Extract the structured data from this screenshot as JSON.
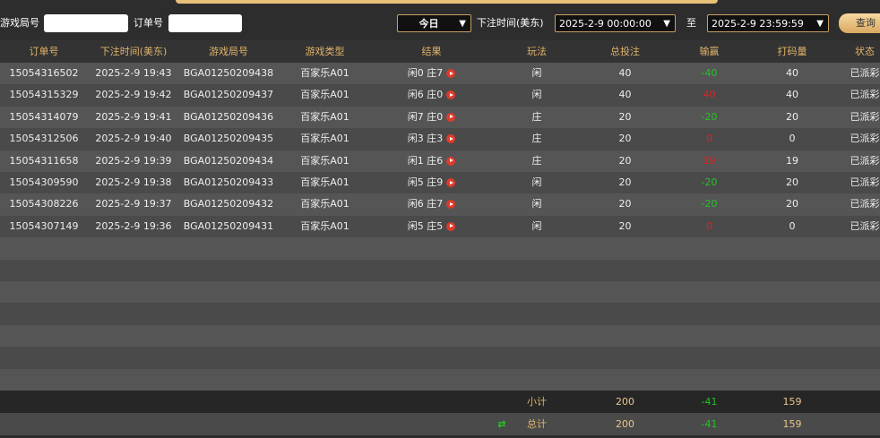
{
  "filters": {
    "round_label": "游戏局号",
    "order_label": "订单号",
    "period": "今日",
    "time_label": "下注时间(美东)",
    "start": "2025-2-9 00:00:00",
    "to": "至",
    "end": "2025-2-9 23:59:59",
    "query": "查询"
  },
  "table": {
    "headers": [
      "订单号",
      "下注时间(美东)",
      "游戏局号",
      "游戏类型",
      "结果",
      "玩法",
      "总投注",
      "输赢",
      "打码量",
      "状态"
    ],
    "rows": [
      [
        "15054316502",
        "2025-2-9 19:43",
        "BGA01250209438",
        "百家乐A01",
        "闲0 庄7",
        "闲",
        40,
        -40,
        40,
        "已派彩"
      ],
      [
        "15054315329",
        "2025-2-9 19:42",
        "BGA01250209437",
        "百家乐A01",
        "闲6 庄0",
        "闲",
        40,
        40,
        40,
        "已派彩"
      ],
      [
        "15054314079",
        "2025-2-9 19:41",
        "BGA01250209436",
        "百家乐A01",
        "闲7 庄0",
        "庄",
        20,
        -20,
        20,
        "已派彩"
      ],
      [
        "15054312506",
        "2025-2-9 19:40",
        "BGA01250209435",
        "百家乐A01",
        "闲3 庄3",
        "庄",
        20,
        0,
        0,
        "已派彩"
      ],
      [
        "15054311658",
        "2025-2-9 19:39",
        "BGA01250209434",
        "百家乐A01",
        "闲1 庄6",
        "庄",
        20,
        19,
        19,
        "已派彩"
      ],
      [
        "15054309590",
        "2025-2-9 19:38",
        "BGA01250209433",
        "百家乐A01",
        "闲5 庄9",
        "闲",
        20,
        -20,
        20,
        "已派彩"
      ],
      [
        "15054308226",
        "2025-2-9 19:37",
        "BGA01250209432",
        "百家乐A01",
        "闲6 庄7",
        "闲",
        20,
        -20,
        20,
        "已派彩"
      ],
      [
        "15054307149",
        "2025-2-9 19:36",
        "BGA01250209431",
        "百家乐A01",
        "闲5 庄5",
        "闲",
        20,
        0,
        0,
        "已派彩"
      ]
    ],
    "subtotal": {
      "label": "小计",
      "total_bet": 200,
      "win_loss": -41,
      "turnover": 159
    },
    "total": {
      "label": "总计",
      "total_bet": 200,
      "win_loss": -41,
      "turnover": 159
    }
  }
}
